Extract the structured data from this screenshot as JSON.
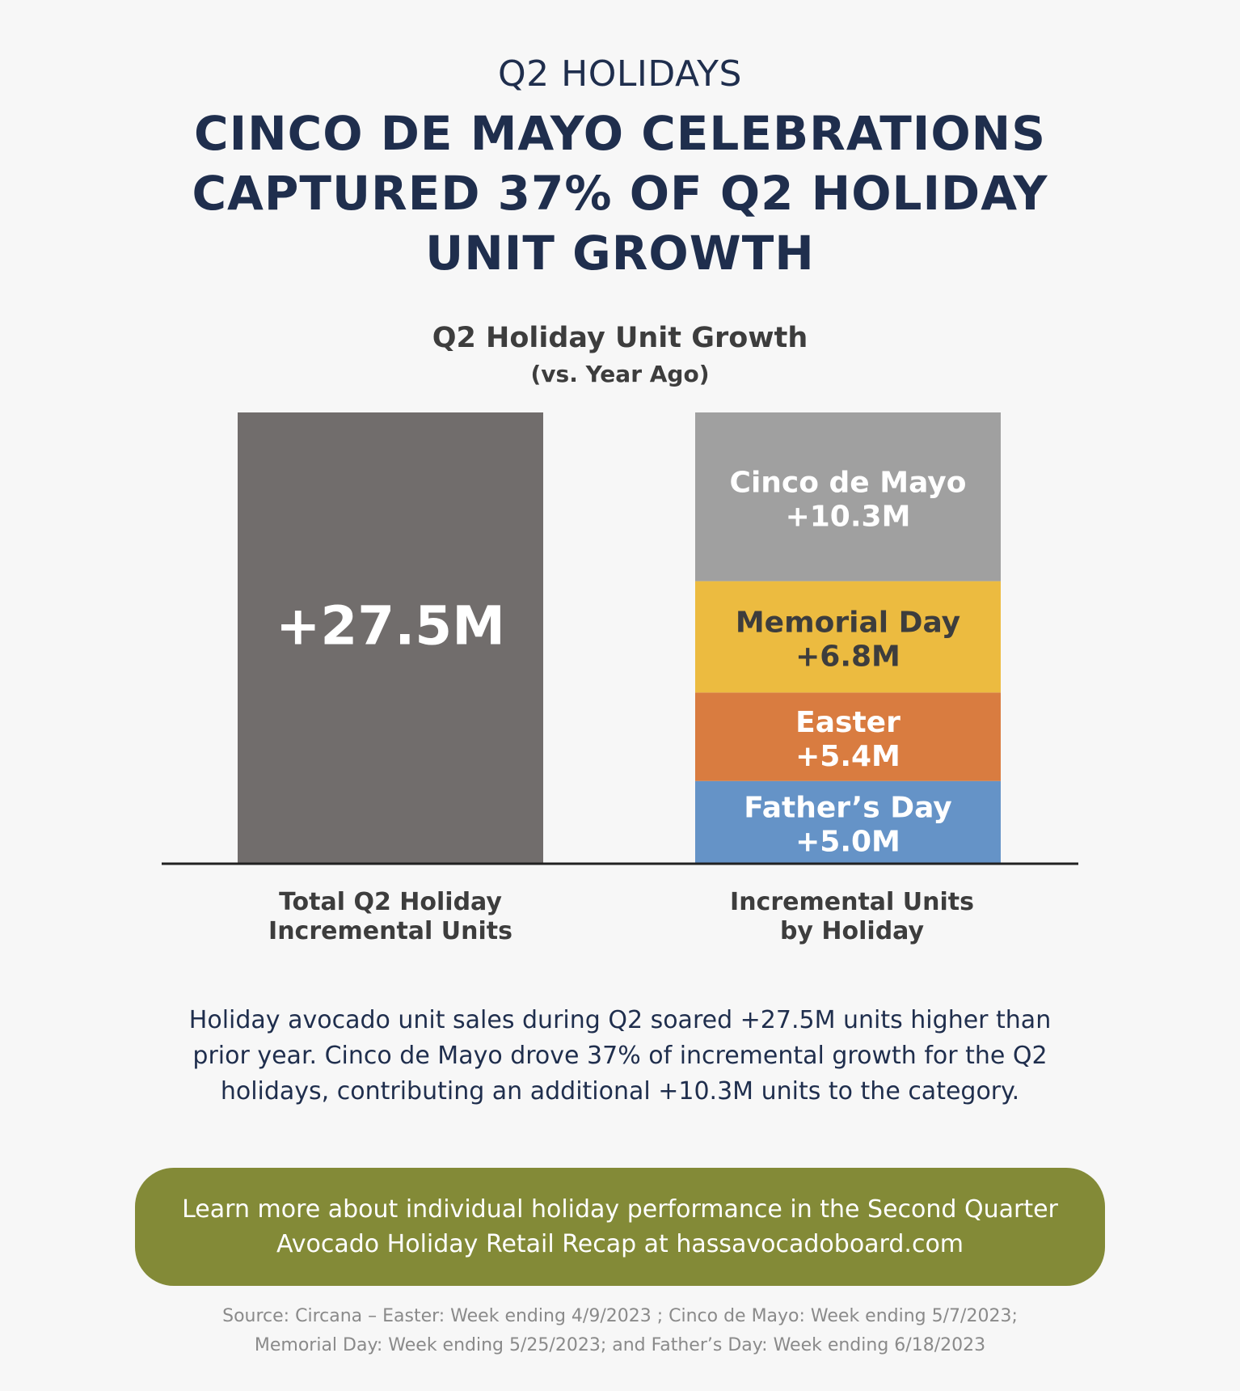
{
  "header": {
    "eyebrow": "Q2 HOLIDAYS",
    "headline": "CINCO DE MAYO CELEBRATIONS CAPTURED 37% OF Q2 HOLIDAY UNIT GROWTH"
  },
  "chart_data": {
    "type": "bar",
    "title": "Q2 Holiday Unit Growth",
    "subtitle": "(vs. Year Ago)",
    "unit": "M",
    "categories": [
      "Total Q2 Holiday Incremental Units",
      "Incremental Units by Holiday"
    ],
    "category_lines": [
      [
        "Total Q2 Holiday",
        "Incremental Units"
      ],
      [
        "Incremental Units",
        "by Holiday"
      ]
    ],
    "ylim": [
      0,
      27.5
    ],
    "grid": false,
    "legend": "none",
    "total": {
      "value": 27.5,
      "label": "+27.5M",
      "color": "#716d6c"
    },
    "stack": [
      {
        "name": "Father’s Day",
        "value": 5.0,
        "label": "+5.0M",
        "color": "#6593c7",
        "text_color": "#ffffff"
      },
      {
        "name": "Easter",
        "value": 5.4,
        "label": "+5.4M",
        "color": "#d97c40",
        "text_color": "#ffffff"
      },
      {
        "name": "Memorial Day",
        "value": 6.8,
        "label": "+6.8M",
        "color": "#ecbb40",
        "text_color": "#3d3d3d"
      },
      {
        "name": "Cinco de Mayo",
        "value": 10.3,
        "label": "+10.3M",
        "color": "#a0a0a0",
        "text_color": "#ffffff"
      }
    ]
  },
  "body": {
    "text": "Holiday avocado unit sales during Q2 soared +27.5M units higher than prior year. Cinco de Mayo drove 37% of incremental growth for the Q2 holidays, contributing an additional +10.3M units to the category."
  },
  "cta": {
    "text": "Learn more about individual holiday performance in the Second Quarter Avocado Holiday Retail Recap at hassavocadoboard.com"
  },
  "source": {
    "line1": "Source: Circana – Easter: Week ending 4/9/2023 ; Cinco de Mayo: Week ending 5/7/2023;",
    "line2": "Memorial Day: Week ending 5/25/2023; and Father’s Day: Week ending 6/18/2023"
  },
  "colors": {
    "navy": "#1f2e4d",
    "cta_green": "#838a37",
    "background": "#f7f7f7"
  }
}
